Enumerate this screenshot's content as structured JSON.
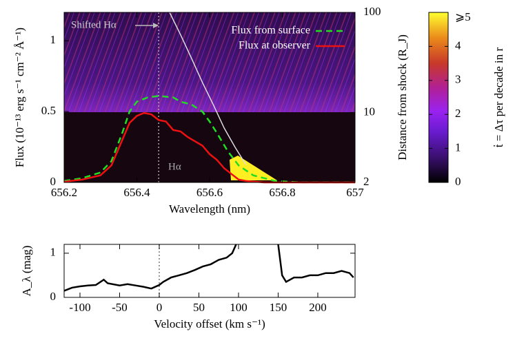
{
  "chart_data": [
    {
      "type": "line",
      "xlabel": "Wavelength (nm)",
      "ylabel": "Flux (10⁻¹³ erg s⁻¹ cm⁻² Å⁻¹)",
      "y2label": "Distance from shock (R_J)",
      "xlim": [
        656.2,
        657
      ],
      "xticks": [
        656.2,
        656.4,
        656.6,
        656.8,
        657
      ],
      "ylim": [
        0,
        1.2
      ],
      "yticks": [
        0,
        0.5,
        1
      ],
      "y2lim": [
        2,
        100
      ],
      "y2ticks": [
        2,
        10,
        100
      ],
      "y2log": true,
      "legend": "upper right",
      "reference_line": 656.46,
      "annotations": [
        "Shifted Hα",
        "Hα"
      ],
      "colorbar": {
        "label": "ṫ = Δτ per decade in r",
        "lim": [
          0,
          5
        ],
        "ticks": [
          0,
          1,
          2,
          3,
          4,
          {
            "value": 5,
            "label": "⩾5"
          }
        ]
      },
      "series": [
        {
          "name": "Flux from surface",
          "color": "#22dd22",
          "dash": true,
          "x": [
            656.2,
            656.25,
            656.3,
            656.33,
            656.36,
            656.38,
            656.4,
            656.43,
            656.46,
            656.5,
            656.52,
            656.55,
            656.58,
            656.6,
            656.62,
            656.65,
            656.68,
            656.72,
            656.78,
            656.85,
            657
          ],
          "values": [
            0.01,
            0.03,
            0.07,
            0.15,
            0.35,
            0.5,
            0.57,
            0.6,
            0.61,
            0.6,
            0.57,
            0.55,
            0.5,
            0.43,
            0.35,
            0.22,
            0.12,
            0.05,
            0.01,
            0,
            0
          ]
        },
        {
          "name": "Flux at observer",
          "color": "#ee1111",
          "x": [
            656.2,
            656.25,
            656.3,
            656.33,
            656.36,
            656.38,
            656.4,
            656.42,
            656.44,
            656.46,
            656.48,
            656.5,
            656.52,
            656.54,
            656.56,
            656.58,
            656.6,
            656.62,
            656.64,
            656.66,
            656.68,
            656.7,
            656.75,
            657
          ],
          "values": [
            0.005,
            0.02,
            0.05,
            0.12,
            0.3,
            0.42,
            0.47,
            0.49,
            0.48,
            0.44,
            0.43,
            0.37,
            0.36,
            0.32,
            0.29,
            0.26,
            0.2,
            0.16,
            0.1,
            0.06,
            0.02,
            0.01,
            0,
            0
          ]
        },
        {
          "color": "#dddddd",
          "axis": "y2",
          "x": [
            656.49,
            656.52,
            656.55,
            656.58,
            656.61,
            656.64,
            656.67,
            656.7
          ],
          "values": [
            100,
            60,
            35,
            20,
            12,
            7,
            4.5,
            3
          ]
        }
      ]
    },
    {
      "type": "line",
      "xlabel": "Velocity offset (km s⁻¹)",
      "ylabel": "A_λ (mag)",
      "xlim": [
        -120,
        247
      ],
      "xticks": [
        -100,
        -50,
        0,
        50,
        100,
        150,
        200
      ],
      "ylim": [
        0,
        1.2
      ],
      "yticks": [
        0,
        1
      ],
      "reference_line": 0,
      "series": [
        {
          "color": "#000000",
          "x": [
            -120,
            -110,
            -100,
            -90,
            -80,
            -70,
            -65,
            -50,
            -40,
            -30,
            -20,
            -10,
            0,
            5,
            15,
            25,
            35,
            45,
            55,
            65,
            75,
            85,
            92,
            97,
            120,
            150,
            155,
            160,
            170,
            180,
            190,
            200,
            210,
            220,
            230,
            240,
            245
          ],
          "values": [
            0.15,
            0.22,
            0.25,
            0.27,
            0.28,
            0.4,
            0.32,
            0.27,
            0.3,
            0.27,
            0.24,
            0.2,
            0.28,
            0.35,
            0.45,
            0.5,
            0.55,
            0.62,
            0.7,
            0.75,
            0.85,
            0.9,
            1.0,
            1.2,
            null,
            1.2,
            0.5,
            0.35,
            0.45,
            0.45,
            0.5,
            0.5,
            0.55,
            0.55,
            0.6,
            0.55,
            0.45
          ]
        }
      ]
    }
  ]
}
